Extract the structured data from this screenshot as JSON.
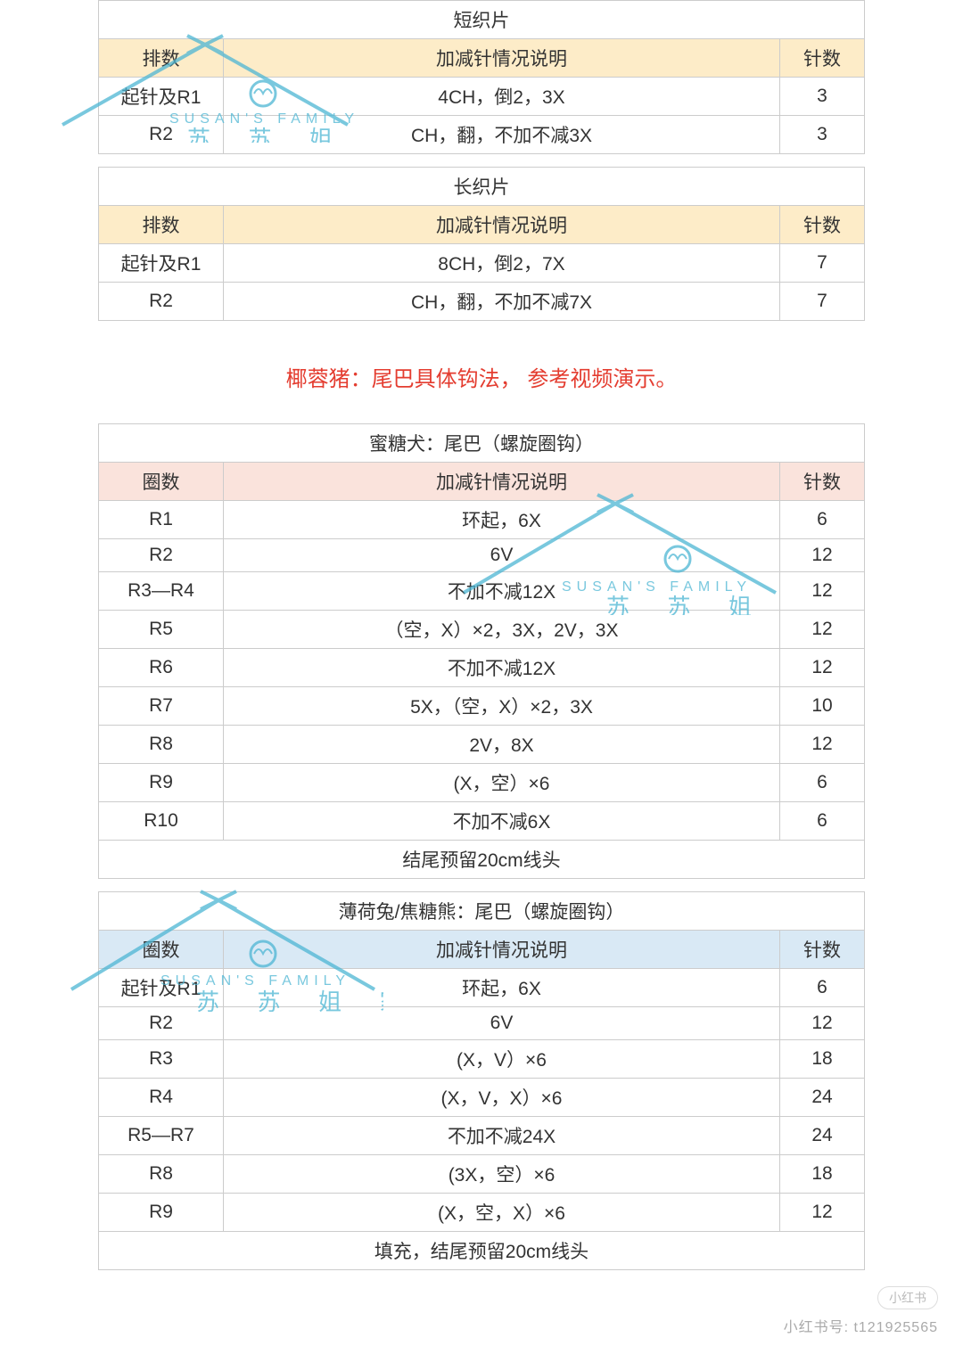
{
  "colors": {
    "header_orange": "#fdecc8",
    "header_blue": "#d9e9f5",
    "header_pink": "#fae3dc",
    "border": "#cccccc",
    "text": "#333333",
    "note_red": "#e43d30",
    "watermark": "#4db6d4"
  },
  "columns": {
    "rows_label": "排数",
    "rounds_label": "圈数",
    "desc_label": "加减针情况说明",
    "count_label": "针数"
  },
  "watermark": {
    "line_en": "SUSAN'S  FAMILY",
    "line_cn": "苏 苏 姐 家"
  },
  "section_note": "椰蓉猪：尾巴具体钩法，  参考视频演示。",
  "table1": {
    "title": "短织片",
    "header_style": "orange",
    "col1": "rows",
    "rows": [
      {
        "r": "起针及R1",
        "d": "4CH，倒2，3X",
        "c": "3"
      },
      {
        "r": "R2",
        "d": "CH，翻，不加不减3X",
        "c": "3"
      }
    ]
  },
  "table2": {
    "title": "长织片",
    "header_style": "orange",
    "col1": "rows",
    "rows": [
      {
        "r": "起针及R1",
        "d": "8CH，倒2，7X",
        "c": "7"
      },
      {
        "r": "R2",
        "d": "CH，翻，不加不减7X",
        "c": "7"
      }
    ]
  },
  "table3": {
    "title": "蜜糖犬：尾巴（螺旋圈钩）",
    "header_style": "pink",
    "col1": "rounds",
    "rows": [
      {
        "r": "R1",
        "d": "环起，6X",
        "c": "6"
      },
      {
        "r": "R2",
        "d": "6V",
        "c": "12"
      },
      {
        "r": "R3—R4",
        "d": "不加不减12X",
        "c": "12"
      },
      {
        "r": "R5",
        "d": "（空，X）×2，3X，2V，3X",
        "c": "12"
      },
      {
        "r": "R6",
        "d": "不加不减12X",
        "c": "12"
      },
      {
        "r": "R7",
        "d": "5X，（空，X）×2，3X",
        "c": "10"
      },
      {
        "r": "R8",
        "d": "2V，8X",
        "c": "12"
      },
      {
        "r": "R9",
        "d": "(X，空）×6",
        "c": "6"
      },
      {
        "r": "R10",
        "d": "不加不减6X",
        "c": "6"
      }
    ],
    "footer": "结尾预留20cm线头"
  },
  "table4": {
    "title": "薄荷兔/焦糖熊：尾巴（螺旋圈钩）",
    "header_style": "blue",
    "col1": "rounds",
    "rows": [
      {
        "r": "起针及R1",
        "d": "环起，6X",
        "c": "6"
      },
      {
        "r": "R2",
        "d": "6V",
        "c": "12"
      },
      {
        "r": "R3",
        "d": "(X，V）×6",
        "c": "18"
      },
      {
        "r": "R4",
        "d": "(X，V，X）×6",
        "c": "24"
      },
      {
        "r": "R5—R7",
        "d": "不加不减24X",
        "c": "24"
      },
      {
        "r": "R8",
        "d": "(3X，空）×6",
        "c": "18"
      },
      {
        "r": "R9",
        "d": "(X，空，X）×6",
        "c": "12"
      }
    ],
    "footer": "填充，结尾预留20cm线头"
  },
  "bottom_tag": "小红书",
  "bottom_id": "小红书号: t121925565"
}
